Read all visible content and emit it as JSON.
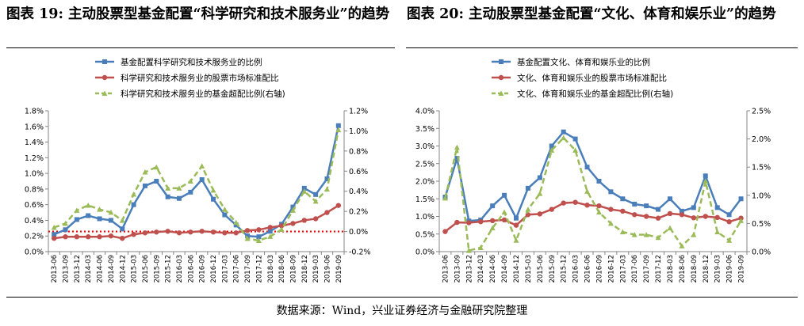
{
  "left_title": "图表 19: 主动股票型基金配置“科学研究和技术服务业”的趋势",
  "right_title": "图表 20: 主动股票型基金配置“文化、体育和娱乐业”的趋势",
  "source": "数据来源：Wind，兴业证券经济与金融研究院整理",
  "colors": {
    "blue": "#4a7ebb",
    "red": "#c0504d",
    "green": "#9bbb59",
    "reference": "#ff0000"
  },
  "chart_data": [
    {
      "type": "line",
      "title": "图表 19: 主动股票型基金配置“科学研究和技术服务业”的趋势",
      "categories": [
        "2013-06",
        "2013-09",
        "2013-12",
        "2014-03",
        "2014-06",
        "2014-09",
        "2014-12",
        "2015-03",
        "2015-06",
        "2015-09",
        "2015-12",
        "2016-03",
        "2016-06",
        "2016-09",
        "2016-12",
        "2017-03",
        "2017-06",
        "2017-09",
        "2017-12",
        "2018-03",
        "2018-06",
        "2018-09",
        "2018-12",
        "2019-03",
        "2019-06",
        "2019-09"
      ],
      "left_axis": {
        "ylim": [
          0.0,
          1.8
        ],
        "ticks": [
          "0.0%",
          "0.2%",
          "0.4%",
          "0.6%",
          "0.8%",
          "1.0%",
          "1.2%",
          "1.4%",
          "1.6%",
          "1.8%"
        ]
      },
      "right_axis": {
        "ylim": [
          -0.2,
          1.2
        ],
        "ticks": [
          "-0.2%",
          "0.0%",
          "0.2%",
          "0.4%",
          "0.6%",
          "0.8%",
          "1.0%",
          "1.2%"
        ]
      },
      "reference_line": 0.0,
      "series": [
        {
          "name": "基金配置科学研究和技术服务业的比例",
          "axis": "left",
          "style": "line-square",
          "color": "#4a7ebb",
          "values": [
            0.22,
            0.28,
            0.41,
            0.46,
            0.42,
            0.4,
            0.29,
            0.6,
            0.84,
            0.9,
            0.7,
            0.68,
            0.76,
            0.92,
            0.67,
            0.47,
            0.34,
            0.2,
            0.19,
            0.26,
            0.35,
            0.57,
            0.81,
            0.73,
            0.93,
            1.61
          ]
        },
        {
          "name": "科学研究和技术服务业的股票市场标准配比",
          "axis": "left",
          "style": "line-circle",
          "color": "#c0504d",
          "values": [
            0.17,
            0.19,
            0.19,
            0.19,
            0.19,
            0.2,
            0.17,
            0.22,
            0.24,
            0.25,
            0.26,
            0.24,
            0.25,
            0.26,
            0.25,
            0.24,
            0.24,
            0.27,
            0.28,
            0.31,
            0.33,
            0.36,
            0.4,
            0.42,
            0.5,
            0.59
          ]
        },
        {
          "name": "科学研究和技术服务业的基金超配比例(右轴)",
          "axis": "right",
          "style": "dashed-triangle",
          "color": "#9bbb59",
          "values": [
            0.04,
            0.08,
            0.21,
            0.26,
            0.22,
            0.19,
            0.11,
            0.37,
            0.59,
            0.64,
            0.43,
            0.43,
            0.5,
            0.65,
            0.41,
            0.22,
            0.09,
            -0.07,
            -0.09,
            -0.05,
            0.02,
            0.21,
            0.4,
            0.3,
            0.42,
            1.01
          ]
        }
      ]
    },
    {
      "type": "line",
      "title": "图表 20: 主动股票型基金配置“文化、体育和娱乐业”的趋势",
      "categories": [
        "2013-06",
        "2013-09",
        "2013-12",
        "2014-03",
        "2014-06",
        "2014-09",
        "2014-12",
        "2015-03",
        "2015-06",
        "2015-09",
        "2015-12",
        "2016-03",
        "2016-06",
        "2016-09",
        "2016-12",
        "2017-03",
        "2017-06",
        "2017-09",
        "2017-12",
        "2018-03",
        "2018-06",
        "2018-09",
        "2018-12",
        "2019-03",
        "2019-06",
        "2019-09"
      ],
      "left_axis": {
        "ylim": [
          0.0,
          4.0
        ],
        "ticks": [
          "0.0%",
          "0.5%",
          "1.0%",
          "1.5%",
          "2.0%",
          "2.5%",
          "3.0%",
          "3.5%",
          "4.0%"
        ]
      },
      "right_axis": {
        "ylim": [
          0.0,
          2.5
        ],
        "ticks": [
          "0.0%",
          "0.5%",
          "1.0%",
          "1.5%",
          "2.0%",
          "2.5%"
        ]
      },
      "reference_line": null,
      "series": [
        {
          "name": "基金配置文化、体育和娱乐业的比例",
          "axis": "left",
          "style": "line-square",
          "color": "#4a7ebb",
          "values": [
            1.55,
            2.65,
            0.87,
            0.9,
            1.3,
            1.6,
            0.95,
            1.8,
            2.1,
            3.0,
            3.4,
            3.2,
            2.4,
            2.0,
            1.7,
            1.5,
            1.35,
            1.3,
            1.2,
            1.5,
            1.15,
            1.25,
            2.15,
            1.25,
            1.05,
            1.5
          ]
        },
        {
          "name": "文化、体育和娱乐业的股票市场标准配比",
          "axis": "left",
          "style": "line-circle",
          "color": "#c0504d",
          "values": [
            0.57,
            0.83,
            0.82,
            0.85,
            0.88,
            0.9,
            0.75,
            1.05,
            1.07,
            1.2,
            1.38,
            1.4,
            1.32,
            1.3,
            1.2,
            1.15,
            1.05,
            1.0,
            0.95,
            1.08,
            1.05,
            0.96,
            1.0,
            0.97,
            0.85,
            0.95
          ]
        },
        {
          "name": "文化、体育和娱乐业的基金超配比例(右轴)",
          "axis": "right",
          "style": "dashed-triangle",
          "color": "#9bbb59",
          "values": [
            0.95,
            1.85,
            0.02,
            0.07,
            0.42,
            0.7,
            0.2,
            0.75,
            1.03,
            1.8,
            2.02,
            1.8,
            1.07,
            0.7,
            0.5,
            0.35,
            0.3,
            0.3,
            0.25,
            0.42,
            0.1,
            0.3,
            1.25,
            0.35,
            0.2,
            0.55
          ]
        }
      ]
    }
  ]
}
